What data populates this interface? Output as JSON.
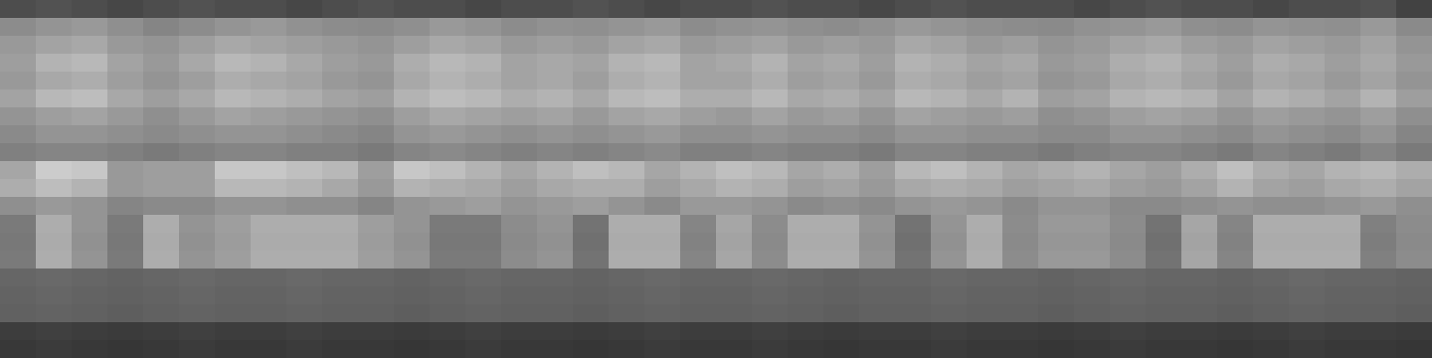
{
  "chart_data": {
    "type": "heatmap",
    "tick_labels": false,
    "zlim": [
      0,
      100
    ],
    "cells": [
      [
        30,
        32,
        30,
        28,
        30,
        32,
        30,
        30,
        28,
        30,
        32,
        30,
        30,
        28,
        30,
        30,
        32,
        30,
        28,
        30,
        30,
        32,
        30,
        30,
        28,
        30,
        32,
        30,
        30,
        30,
        28,
        30,
        32,
        30,
        30,
        28,
        30,
        30,
        32,
        26
      ],
      [
        55,
        58,
        60,
        56,
        52,
        55,
        58,
        60,
        57,
        55,
        54,
        56,
        60,
        58,
        55,
        57,
        56,
        58,
        60,
        55,
        57,
        58,
        56,
        55,
        57,
        60,
        58,
        56,
        55,
        54,
        57,
        58,
        60,
        56,
        55,
        58,
        57,
        56,
        60,
        54
      ],
      [
        60,
        64,
        66,
        60,
        58,
        62,
        66,
        64,
        62,
        60,
        58,
        62,
        66,
        64,
        60,
        62,
        60,
        64,
        66,
        60,
        62,
        64,
        60,
        62,
        60,
        66,
        64,
        60,
        62,
        58,
        60,
        64,
        66,
        62,
        60,
        64,
        62,
        60,
        64,
        58
      ],
      [
        62,
        70,
        72,
        64,
        60,
        66,
        72,
        70,
        66,
        62,
        60,
        68,
        72,
        70,
        64,
        66,
        64,
        70,
        72,
        64,
        66,
        70,
        64,
        66,
        62,
        70,
        68,
        64,
        66,
        60,
        62,
        68,
        70,
        66,
        62,
        68,
        66,
        62,
        66,
        60
      ],
      [
        60,
        66,
        68,
        62,
        58,
        62,
        68,
        66,
        64,
        60,
        58,
        66,
        70,
        68,
        64,
        66,
        62,
        68,
        70,
        64,
        64,
        68,
        62,
        64,
        60,
        68,
        66,
        62,
        64,
        58,
        60,
        66,
        68,
        64,
        60,
        66,
        64,
        60,
        64,
        58
      ],
      [
        64,
        72,
        74,
        66,
        62,
        66,
        72,
        70,
        68,
        64,
        62,
        70,
        74,
        72,
        68,
        70,
        66,
        72,
        74,
        68,
        68,
        72,
        66,
        68,
        64,
        72,
        70,
        66,
        70,
        62,
        64,
        70,
        72,
        70,
        64,
        70,
        68,
        64,
        70,
        62
      ],
      [
        58,
        62,
        64,
        60,
        56,
        60,
        64,
        62,
        60,
        58,
        56,
        62,
        66,
        64,
        62,
        64,
        60,
        64,
        66,
        62,
        60,
        64,
        60,
        62,
        58,
        64,
        62,
        60,
        62,
        56,
        58,
        62,
        64,
        62,
        58,
        62,
        60,
        58,
        62,
        56
      ],
      [
        54,
        58,
        58,
        56,
        54,
        56,
        58,
        58,
        56,
        54,
        52,
        58,
        60,
        58,
        56,
        58,
        56,
        58,
        60,
        56,
        56,
        58,
        56,
        56,
        54,
        58,
        58,
        56,
        56,
        54,
        54,
        58,
        58,
        56,
        54,
        58,
        56,
        54,
        58,
        52
      ],
      [
        50,
        52,
        52,
        50,
        48,
        50,
        52,
        52,
        50,
        50,
        48,
        52,
        54,
        52,
        50,
        52,
        50,
        52,
        54,
        50,
        50,
        52,
        50,
        50,
        48,
        52,
        52,
        50,
        50,
        48,
        50,
        52,
        52,
        50,
        48,
        52,
        50,
        48,
        52,
        48
      ],
      [
        65,
        80,
        78,
        60,
        62,
        62,
        78,
        78,
        75,
        72,
        62,
        78,
        75,
        70,
        65,
        70,
        75,
        72,
        65,
        70,
        75,
        72,
        65,
        68,
        62,
        72,
        75,
        70,
        65,
        68,
        70,
        65,
        62,
        68,
        75,
        68,
        65,
        70,
        72,
        68
      ],
      [
        68,
        74,
        70,
        60,
        62,
        62,
        72,
        72,
        70,
        66,
        60,
        70,
        68,
        66,
        62,
        66,
        68,
        68,
        62,
        66,
        70,
        68,
        62,
        64,
        60,
        66,
        68,
        66,
        62,
        64,
        66,
        62,
        60,
        64,
        70,
        64,
        62,
        66,
        68,
        64
      ],
      [
        56,
        60,
        58,
        52,
        54,
        54,
        58,
        58,
        56,
        56,
        52,
        58,
        60,
        62,
        58,
        60,
        62,
        58,
        54,
        60,
        60,
        58,
        54,
        56,
        54,
        58,
        60,
        58,
        54,
        58,
        58,
        54,
        54,
        56,
        58,
        56,
        56,
        58,
        60,
        56
      ],
      [
        48,
        68,
        58,
        48,
        68,
        58,
        62,
        68,
        68,
        68,
        62,
        58,
        48,
        48,
        55,
        58,
        45,
        68,
        68,
        52,
        65,
        55,
        68,
        68,
        58,
        45,
        58,
        68,
        55,
        60,
        60,
        55,
        45,
        65,
        52,
        68,
        68,
        68,
        50,
        55
      ],
      [
        47,
        67,
        57,
        47,
        67,
        57,
        61,
        67,
        67,
        67,
        61,
        57,
        47,
        47,
        54,
        57,
        44,
        67,
        67,
        51,
        64,
        54,
        67,
        67,
        57,
        44,
        57,
        67,
        54,
        59,
        59,
        54,
        44,
        64,
        51,
        67,
        67,
        67,
        49,
        54
      ],
      [
        48,
        68,
        58,
        48,
        68,
        58,
        62,
        68,
        68,
        68,
        62,
        58,
        48,
        48,
        55,
        58,
        45,
        68,
        68,
        52,
        65,
        55,
        68,
        68,
        58,
        45,
        58,
        68,
        55,
        60,
        60,
        55,
        45,
        65,
        52,
        68,
        68,
        68,
        50,
        55
      ],
      [
        40,
        41,
        40,
        39,
        40,
        41,
        40,
        40,
        41,
        40,
        40,
        39,
        40,
        41,
        40,
        40,
        39,
        40,
        41,
        40,
        40,
        41,
        40,
        39,
        40,
        40,
        41,
        40,
        40,
        39,
        40,
        41,
        40,
        40,
        39,
        40,
        41,
        40,
        40,
        39
      ],
      [
        39,
        40,
        39,
        38,
        39,
        40,
        39,
        39,
        40,
        39,
        39,
        38,
        39,
        40,
        39,
        39,
        38,
        39,
        40,
        39,
        39,
        40,
        39,
        38,
        39,
        39,
        40,
        39,
        39,
        38,
        39,
        40,
        39,
        39,
        38,
        39,
        40,
        39,
        39,
        38
      ],
      [
        38,
        39,
        38,
        37,
        38,
        39,
        38,
        38,
        39,
        38,
        38,
        37,
        38,
        39,
        38,
        38,
        37,
        38,
        39,
        38,
        38,
        39,
        38,
        37,
        38,
        38,
        39,
        38,
        38,
        37,
        38,
        39,
        38,
        38,
        37,
        38,
        39,
        38,
        38,
        37
      ],
      [
        24,
        25,
        24,
        23,
        24,
        25,
        24,
        24,
        25,
        24,
        24,
        23,
        24,
        25,
        24,
        24,
        23,
        24,
        25,
        24,
        24,
        25,
        24,
        23,
        24,
        24,
        25,
        24,
        24,
        23,
        24,
        25,
        24,
        24,
        23,
        24,
        25,
        24,
        24,
        23
      ],
      [
        22,
        23,
        22,
        21,
        22,
        23,
        22,
        22,
        23,
        22,
        22,
        21,
        22,
        23,
        22,
        22,
        21,
        22,
        23,
        22,
        22,
        23,
        22,
        21,
        22,
        22,
        23,
        22,
        22,
        21,
        22,
        23,
        22,
        22,
        21,
        22,
        23,
        22,
        22,
        21
      ]
    ]
  }
}
